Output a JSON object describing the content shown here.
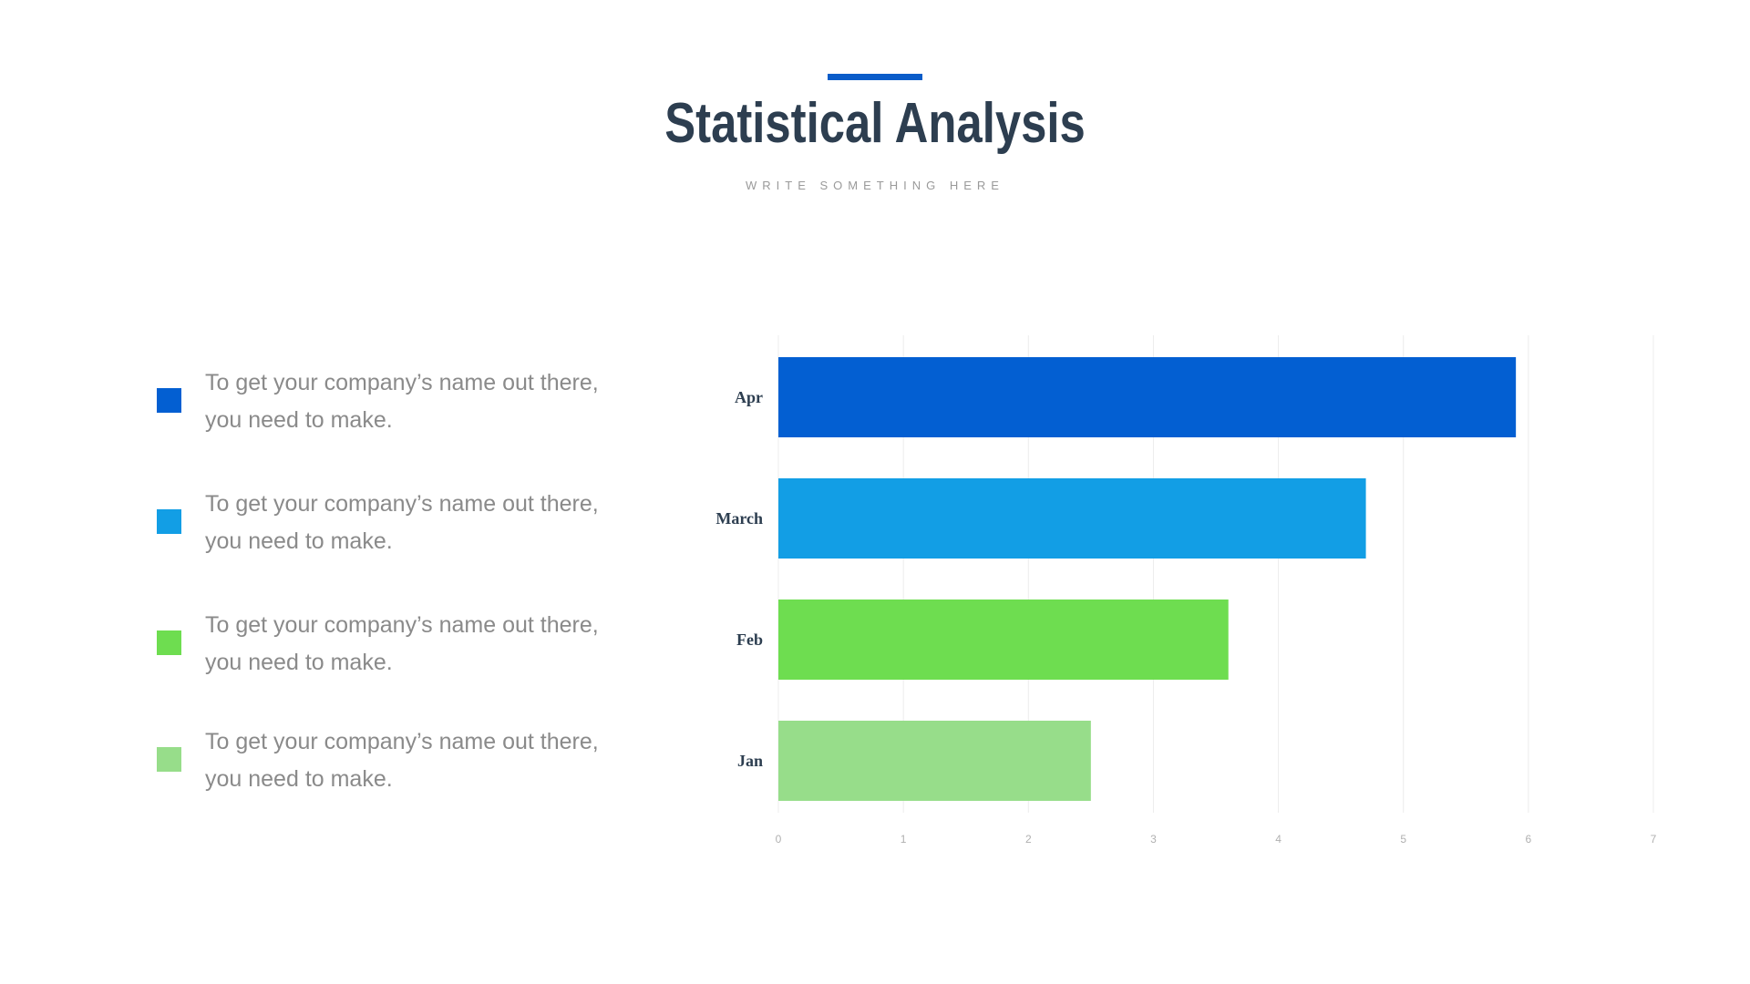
{
  "slide": {
    "title": "Statistical Analysis",
    "subtitle": "WRITE SOMETHING HERE"
  },
  "colors": {
    "accent": "#0a5cc9",
    "title": "#2d3e50",
    "text": "#8a8a8a",
    "grid": "#ececec",
    "axis_labels": "#b0b0b0"
  },
  "legend": {
    "items": [
      {
        "text": "To get your company’s name out there, you need to make.",
        "color": "#035fd2"
      },
      {
        "text": "To get your company’s name out there, you need to make.",
        "color": "#129ee5"
      },
      {
        "text": "To get your company’s name out there, you need to make.",
        "color": "#6edd50"
      },
      {
        "text": "To get your company’s name out there, you need to make.",
        "color": "#97dd8a"
      }
    ]
  },
  "chart_data": {
    "type": "bar",
    "orientation": "horizontal",
    "categories": [
      "Apr",
      "March",
      "Feb",
      "Jan"
    ],
    "values": [
      5.9,
      4.7,
      3.6,
      2.5
    ],
    "colors": [
      "#035fd2",
      "#129ee5",
      "#6edd50",
      "#97dd8a"
    ],
    "xlim": [
      0,
      7
    ],
    "xticks": [
      "0",
      "1",
      "2",
      "3",
      "4",
      "5",
      "6",
      "7"
    ],
    "grid": true,
    "title": "",
    "xlabel": "",
    "ylabel": ""
  }
}
